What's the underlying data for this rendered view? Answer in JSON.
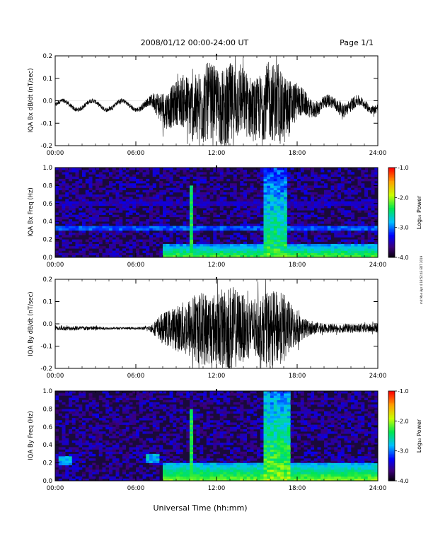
{
  "header": {
    "title": "2008/01/12  00:00-24:00 UT",
    "page": "Page 1/1"
  },
  "side_note": "mit Mon Apr 4 18:52:43 EDT 2019",
  "footer": {
    "xlabel": "Universal Time (hh:mm)"
  },
  "colors": {
    "trace": "#000000",
    "axis": "#000000",
    "background": "#1a0a3a"
  },
  "chart_data": [
    {
      "type": "line",
      "ylabel": "IQA Bx dB/dt (nT/sec)",
      "xlabel": "",
      "x_range_hours": [
        0,
        24
      ],
      "xticks": [
        "00:00",
        "06:00",
        "12:00",
        "18:00",
        "24:00"
      ],
      "ylim": [
        -0.2,
        0.2
      ],
      "yticks": [
        "-0.2",
        "-0.1",
        "0.0",
        "0.1",
        "0.2"
      ],
      "envelope": {
        "hours": [
          0,
          1,
          2,
          3,
          4,
          5,
          6,
          7,
          7.5,
          8,
          9,
          10,
          11,
          12,
          13,
          14,
          15,
          16,
          17,
          18,
          19,
          20,
          21,
          22,
          23,
          24
        ],
        "amplitude": [
          0.01,
          0.01,
          0.01,
          0.01,
          0.01,
          0.01,
          0.01,
          0.02,
          0.05,
          0.08,
          0.1,
          0.14,
          0.18,
          0.16,
          0.2,
          0.15,
          0.14,
          0.18,
          0.16,
          0.08,
          0.04,
          0.03,
          0.03,
          0.03,
          0.02,
          0.02
        ]
      },
      "baseline_wave": {
        "amplitude": 0.02,
        "period_hours": 2.2
      }
    },
    {
      "type": "heatmap",
      "ylabel": "IQA Bx Freq (Hz)",
      "x_range_hours": [
        0,
        24
      ],
      "xticks": [
        "00:00",
        "06:00",
        "12:00",
        "18:00",
        "24:00"
      ],
      "ylim": [
        0.0,
        1.0
      ],
      "yticks": [
        "0.0",
        "0.2",
        "0.4",
        "0.6",
        "0.8",
        "1.0"
      ],
      "colorbar": {
        "label": "Log₁₀ Power",
        "range": [
          -4.0,
          -1.0
        ],
        "ticks": [
          "-1.0",
          "-2.0",
          "-3.0",
          "-4.0"
        ]
      },
      "features": [
        {
          "kind": "band",
          "hour_start": 0,
          "hour_end": 24,
          "freq": 0.33,
          "power": -3.2
        },
        {
          "kind": "band",
          "hour_start": 0,
          "hour_end": 24,
          "freq": 0.6,
          "power": -3.6
        },
        {
          "kind": "burst",
          "hour_start": 15.5,
          "hour_end": 17.3,
          "freq_max": 1.0,
          "power": -2.5
        },
        {
          "kind": "spike",
          "hour": 10.2,
          "freq_max": 0.8,
          "power": -2.5
        },
        {
          "kind": "low_freq_enhancement",
          "hour_start": 8,
          "hour_end": 24,
          "freq_max": 0.15,
          "power": -2.3
        }
      ]
    },
    {
      "type": "line",
      "ylabel": "IQA By dB/dt (nT/sec)",
      "x_range_hours": [
        0,
        24
      ],
      "xticks": [
        "00:00",
        "06:00",
        "12:00",
        "18:00",
        "24:00"
      ],
      "ylim": [
        -0.2,
        0.2
      ],
      "yticks": [
        "-0.2",
        "-0.1",
        "0.0",
        "0.1",
        "0.2"
      ],
      "envelope": {
        "hours": [
          0,
          1,
          2,
          3,
          4,
          5,
          6,
          7,
          7.5,
          8,
          9,
          10,
          11,
          12,
          13,
          14,
          15,
          16,
          17,
          18,
          19,
          20,
          21,
          22,
          23,
          24
        ],
        "amplitude": [
          0.01,
          0.01,
          0.01,
          0.01,
          0.005,
          0.005,
          0.005,
          0.01,
          0.04,
          0.07,
          0.1,
          0.14,
          0.17,
          0.16,
          0.2,
          0.15,
          0.13,
          0.17,
          0.16,
          0.07,
          0.03,
          0.02,
          0.02,
          0.02,
          0.02,
          0.02
        ]
      },
      "baseline_wave": {
        "amplitude": 0.0,
        "period_hours": 2.0
      }
    },
    {
      "type": "heatmap",
      "ylabel": "IQA By Freq (Hz)",
      "x_range_hours": [
        0,
        24
      ],
      "xticks": [
        "00:00",
        "06:00",
        "12:00",
        "18:00",
        "24:00"
      ],
      "ylim": [
        0.0,
        1.0
      ],
      "yticks": [
        "0.0",
        "0.2",
        "0.4",
        "0.6",
        "0.8",
        "1.0"
      ],
      "colorbar": {
        "label": "Log₁₀ Power",
        "range": [
          -4.0,
          -1.0
        ],
        "ticks": [
          "-1.0",
          "-2.0",
          "-3.0",
          "-4.0"
        ]
      },
      "features": [
        {
          "kind": "patch",
          "hour_start": 0.3,
          "hour_end": 1.3,
          "freq": 0.22,
          "power": -3.0
        },
        {
          "kind": "patch",
          "hour_start": 6.8,
          "hour_end": 7.8,
          "freq": 0.25,
          "power": -3.0
        },
        {
          "kind": "burst",
          "hour_start": 15.5,
          "hour_end": 17.5,
          "freq_max": 1.0,
          "power": -2.3
        },
        {
          "kind": "spike",
          "hour": 10.2,
          "freq_max": 0.8,
          "power": -2.5
        },
        {
          "kind": "low_freq_enhancement",
          "hour_start": 8,
          "hour_end": 24,
          "freq_max": 0.2,
          "power": -2.2
        }
      ]
    }
  ]
}
